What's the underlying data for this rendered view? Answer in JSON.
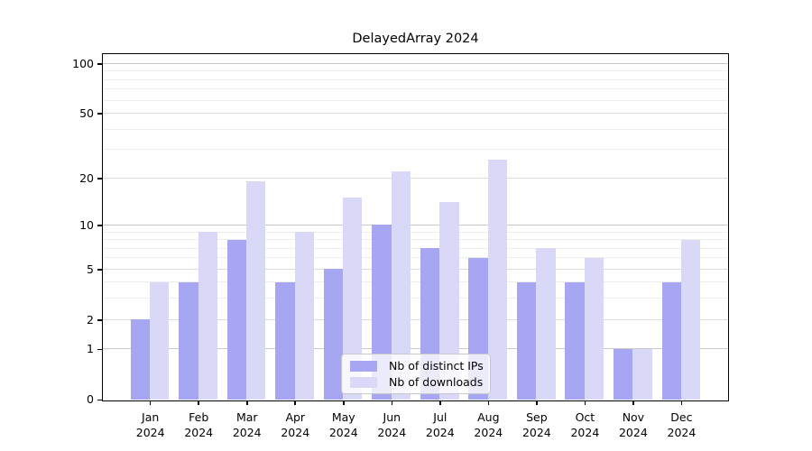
{
  "chart_data": {
    "type": "bar",
    "title": "DelayedArray 2024",
    "year": "2024",
    "categories": [
      "Jan",
      "Feb",
      "Mar",
      "Apr",
      "May",
      "Jun",
      "Jul",
      "Aug",
      "Sep",
      "Oct",
      "Nov",
      "Dec"
    ],
    "series": [
      {
        "name": "Nb of distinct IPs",
        "color": "#a6a6f2",
        "values": [
          2,
          4,
          8,
          4,
          5,
          10,
          7,
          6,
          4,
          4,
          1,
          4
        ]
      },
      {
        "name": "Nb of downloads",
        "color": "#d9d9f7",
        "values": [
          4,
          9,
          19,
          9,
          15,
          22,
          14,
          26,
          7,
          6,
          1,
          8
        ]
      }
    ],
    "y_axis": {
      "scale": "log10(value+1)",
      "tick_values": [
        0,
        1,
        2,
        5,
        10,
        20,
        50,
        100
      ],
      "minor_gridline_values": [
        3,
        4,
        6,
        7,
        8,
        9,
        30,
        40,
        60,
        70,
        80,
        90
      ],
      "top_value": 114
    },
    "legend": {
      "position": "bottom-center"
    },
    "grid": true,
    "background": "#ffffff"
  }
}
